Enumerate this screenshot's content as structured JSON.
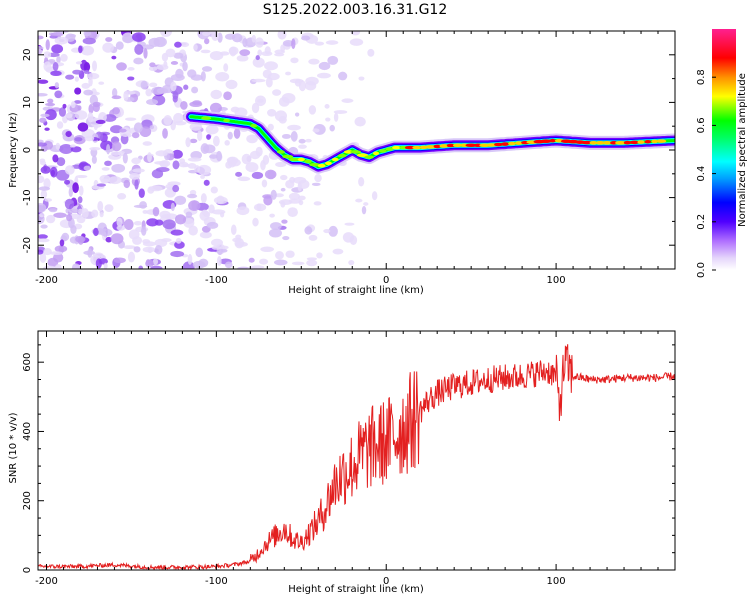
{
  "title": "S125.2022.003.16.31.G12",
  "chart_data": [
    {
      "type": "heatmap",
      "xlabel": "Height of straight line (km)",
      "ylabel": "Frequency (Hz)",
      "xlim": [
        -205,
        170
      ],
      "ylim": [
        -25,
        25
      ],
      "xticks": [
        -200,
        -100,
        0,
        100
      ],
      "yticks": [
        20,
        10,
        0,
        -10,
        -20
      ],
      "colorbar": {
        "label": "Normalized spectral amplitude",
        "range": [
          0.0,
          1.0
        ],
        "ticks": [
          "0.0",
          "0.2",
          "0.4",
          "0.6",
          "0.8"
        ],
        "colors": [
          "#ffffff",
          "#b39ddb",
          "#7b00ff",
          "#0000ff",
          "#00ffff",
          "#00ff00",
          "#ffff00",
          "#ff0000",
          "#ff1493"
        ]
      },
      "ridge": {
        "x": [
          -115,
          -100,
          -90,
          -80,
          -75,
          -70,
          -65,
          -60,
          -55,
          -50,
          -45,
          -40,
          -35,
          -30,
          -25,
          -20,
          -15,
          -10,
          -5,
          0,
          5,
          10,
          20,
          40,
          60,
          80,
          100,
          120,
          140,
          170
        ],
        "y": [
          7,
          6.5,
          6,
          5.5,
          4.5,
          2.5,
          0.5,
          -1,
          -2,
          -2,
          -2.5,
          -3.5,
          -3,
          -2,
          -1,
          0,
          -1,
          -1.5,
          -0.5,
          0,
          0.5,
          0.5,
          0.5,
          1,
          1,
          1.5,
          2,
          1.5,
          1.5,
          2
        ]
      }
    },
    {
      "type": "line",
      "xlabel": "Height of straight line (km)",
      "ylabel": "SNR (10 * v/v)",
      "xlim": [
        -205,
        170
      ],
      "ylim": [
        0,
        690
      ],
      "xticks": [
        -200,
        -100,
        0,
        100
      ],
      "yticks": [
        600,
        400,
        200,
        0
      ],
      "series": [
        {
          "color": "#e32020",
          "x": [
            -205,
            -180,
            -160,
            -140,
            -120,
            -100,
            -90,
            -80,
            -75,
            -70,
            -65,
            -60,
            -55,
            -50,
            -45,
            -40,
            -35,
            -30,
            -25,
            -20,
            -15,
            -10,
            -5,
            0,
            5,
            10,
            15,
            20,
            25,
            30,
            40,
            50,
            60,
            70,
            80,
            90,
            95,
            100,
            102,
            105,
            110,
            120,
            130,
            140,
            150,
            160,
            170
          ],
          "y": [
            10,
            10,
            15,
            8,
            8,
            10,
            15,
            25,
            50,
            80,
            100,
            120,
            90,
            80,
            110,
            140,
            190,
            250,
            280,
            300,
            330,
            350,
            360,
            370,
            390,
            410,
            430,
            460,
            490,
            510,
            530,
            540,
            550,
            555,
            560,
            570,
            575,
            560,
            470,
            600,
            560,
            550,
            550,
            555,
            555,
            555,
            560
          ]
        }
      ]
    }
  ]
}
